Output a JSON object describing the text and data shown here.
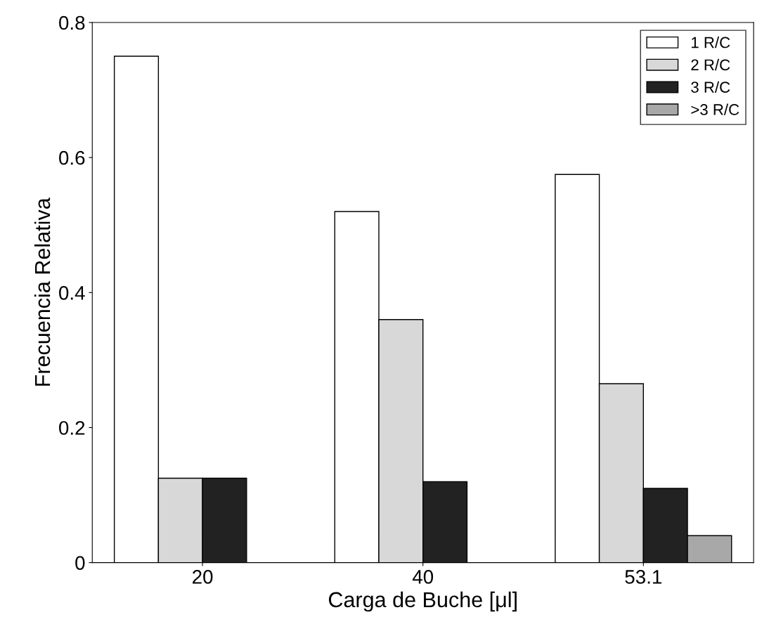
{
  "chart_data": {
    "type": "bar",
    "xlabel": "Carga de Buche [μl]",
    "ylabel": "Frecuencia Relativa",
    "categories": [
      "20",
      "40",
      "53.1"
    ],
    "series": [
      {
        "name": "1 R/C",
        "color": "#ffffff",
        "values": [
          0.75,
          0.52,
          0.575
        ]
      },
      {
        "name": "2 R/C",
        "color": "#d8d8d8",
        "values": [
          0.125,
          0.36,
          0.265
        ]
      },
      {
        "name": "3 R/C",
        "color": "#222222",
        "values": [
          0.125,
          0.12,
          0.11
        ]
      },
      {
        "name": ">3 R/C",
        "color": "#a8a8a8",
        "values": [
          null,
          null,
          0.04
        ]
      }
    ],
    "ylim": [
      0,
      0.8
    ],
    "yticks": [
      0,
      0.2,
      0.4,
      0.6,
      0.8
    ],
    "grid": false,
    "legend": "top right"
  }
}
